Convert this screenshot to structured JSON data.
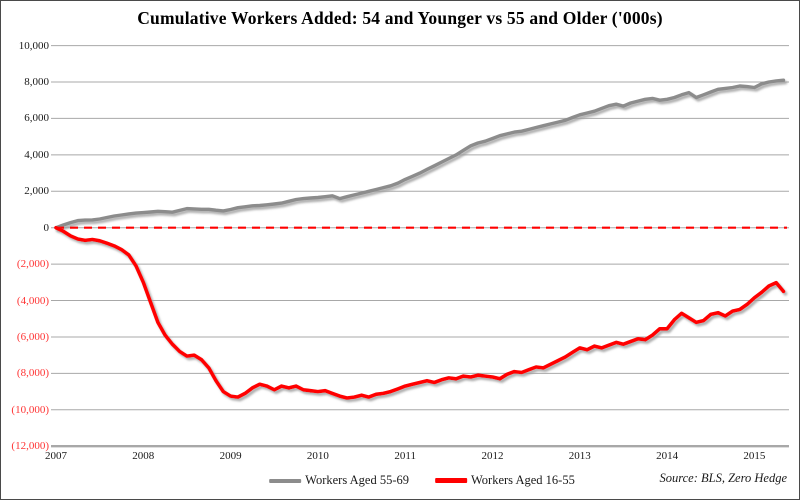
{
  "title": "Cumulative Workers Added: 54 and Younger vs 55 and Older ('000s)",
  "source_note": "Source: BLS, Zero Hedge",
  "colors": {
    "older_series": "#8c8c8c",
    "younger_series": "#ff0000",
    "zero_line": "#ff0000",
    "gridline": "#a8a8a8",
    "axis_label": "#1a1a1a",
    "negative_label": "#ff3333",
    "frame": "#4a4a4a"
  },
  "chart_data": {
    "type": "line",
    "title": "Cumulative Workers Added: 54 and Younger vs 55 and Older ('000s)",
    "xlabel": "",
    "ylabel": "",
    "x_start_year": 2007,
    "x_step_months": 1,
    "x_tick_labels": [
      "2007",
      "2008",
      "2009",
      "2010",
      "2011",
      "2012",
      "2013",
      "2014",
      "2015"
    ],
    "ylim": [
      -12000,
      10000
    ],
    "grid": "horizontal",
    "legend_position": "bottom-center",
    "zero_line": {
      "style": "dashed",
      "color": "#ff0000",
      "value": 0
    },
    "y_ticks": [
      {
        "value": 10000,
        "label": "10,000"
      },
      {
        "value": 8000,
        "label": "8,000"
      },
      {
        "value": 6000,
        "label": "6,000"
      },
      {
        "value": 4000,
        "label": "4,000"
      },
      {
        "value": 2000,
        "label": "2,000"
      },
      {
        "value": 0,
        "label": "0"
      },
      {
        "value": -2000,
        "label": "(2,000)"
      },
      {
        "value": -4000,
        "label": "(4,000)"
      },
      {
        "value": -6000,
        "label": "(6,000)"
      },
      {
        "value": -8000,
        "label": "(8,000)"
      },
      {
        "value": -10000,
        "label": "(10,000)"
      },
      {
        "value": -12000,
        "label": "(12,000)"
      }
    ],
    "series": [
      {
        "name": "Workers Aged 55-69",
        "color": "#8c8c8c",
        "values": [
          0,
          150,
          280,
          390,
          420,
          430,
          480,
          560,
          640,
          700,
          760,
          800,
          830,
          860,
          900,
          880,
          850,
          950,
          1050,
          1030,
          1010,
          1010,
          960,
          920,
          1000,
          1100,
          1150,
          1200,
          1220,
          1260,
          1300,
          1350,
          1450,
          1550,
          1600,
          1630,
          1660,
          1700,
          1750,
          1600,
          1700,
          1800,
          1900,
          2000,
          2100,
          2200,
          2300,
          2450,
          2650,
          2820,
          3000,
          3200,
          3400,
          3600,
          3800,
          4000,
          4250,
          4500,
          4650,
          4750,
          4900,
          5050,
          5150,
          5250,
          5300,
          5400,
          5500,
          5600,
          5700,
          5800,
          5900,
          6050,
          6200,
          6300,
          6400,
          6550,
          6700,
          6780,
          6680,
          6850,
          6950,
          7050,
          7100,
          7000,
          7050,
          7150,
          7300,
          7420,
          7150,
          7300,
          7450,
          7600,
          7650,
          7700,
          7780,
          7750,
          7700,
          7900,
          8000,
          8060,
          8100
        ]
      },
      {
        "name": "Workers Aged 16-55",
        "color": "#ff0000",
        "values": [
          0,
          -200,
          -450,
          -620,
          -700,
          -650,
          -720,
          -850,
          -1000,
          -1200,
          -1500,
          -2100,
          -3000,
          -4100,
          -5200,
          -5900,
          -6400,
          -6800,
          -7050,
          -7000,
          -7250,
          -7700,
          -8400,
          -9000,
          -9250,
          -9300,
          -9100,
          -8800,
          -8600,
          -8700,
          -8900,
          -8700,
          -8800,
          -8700,
          -8900,
          -8950,
          -9000,
          -8950,
          -9100,
          -9250,
          -9350,
          -9300,
          -9200,
          -9300,
          -9150,
          -9100,
          -9000,
          -8850,
          -8700,
          -8600,
          -8500,
          -8400,
          -8500,
          -8350,
          -8250,
          -8300,
          -8150,
          -8200,
          -8100,
          -8150,
          -8200,
          -8300,
          -8050,
          -7900,
          -7950,
          -7800,
          -7650,
          -7700,
          -7500,
          -7300,
          -7100,
          -6850,
          -6600,
          -6700,
          -6500,
          -6600,
          -6450,
          -6300,
          -6400,
          -6250,
          -6100,
          -6150,
          -5900,
          -5550,
          -5550,
          -5050,
          -4700,
          -4950,
          -5200,
          -5100,
          -4760,
          -4670,
          -4850,
          -4580,
          -4490,
          -4210,
          -3850,
          -3550,
          -3200,
          -3020,
          -3500
        ]
      }
    ]
  }
}
